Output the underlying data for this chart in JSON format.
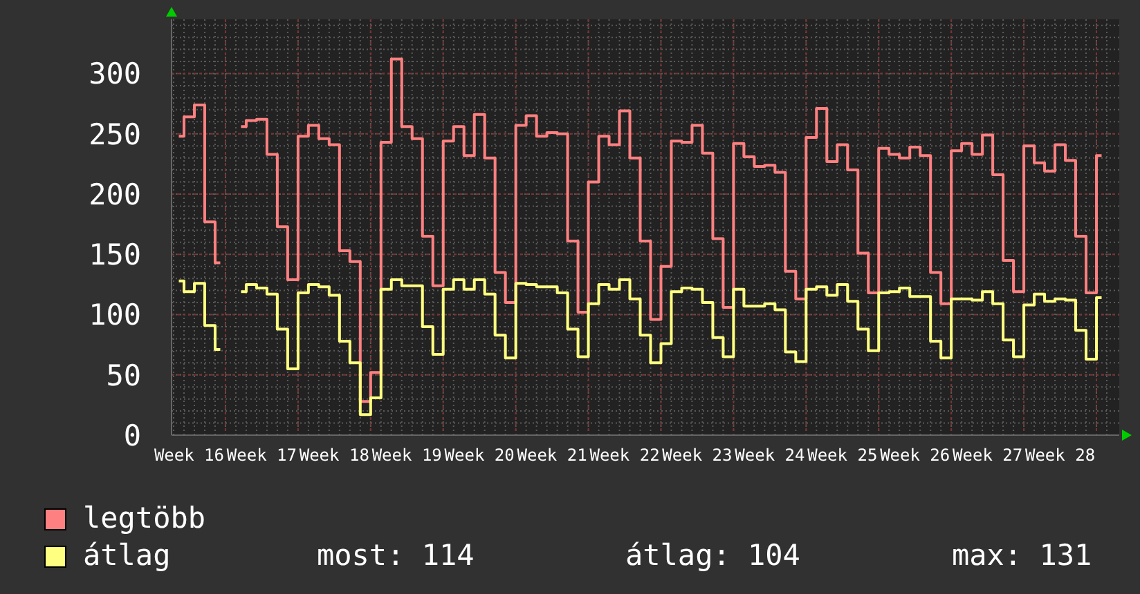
{
  "chart_data": {
    "type": "step",
    "categories": [
      null,
      "Week 16",
      null,
      null,
      null,
      null,
      null,
      null,
      "Week 17",
      null,
      null,
      null,
      null,
      null,
      null,
      "Week 18",
      null,
      null,
      null,
      null,
      null,
      null,
      "Week 19",
      null,
      null,
      null,
      null,
      null,
      null,
      "Week 20",
      null,
      null,
      null,
      null,
      null,
      null,
      "Week 21",
      null,
      null,
      null,
      null,
      null,
      null,
      "Week 22",
      null,
      null,
      null,
      null,
      null,
      null,
      "Week 23",
      null,
      null,
      null,
      null,
      null,
      null,
      "Week 24",
      null,
      null,
      null,
      null,
      null,
      null,
      "Week 25",
      null,
      null,
      null,
      null,
      null,
      null,
      "Week 26",
      null,
      null,
      null,
      null,
      null,
      null,
      "Week 27",
      null,
      null,
      null,
      null,
      null,
      null,
      "Week 28",
      null,
      null,
      null,
      null
    ],
    "series": [
      {
        "name": "legtöbb",
        "color": "#ff8080",
        "values": [
          248,
          264,
          274,
          177,
          143,
          null,
          256,
          261,
          262,
          233,
          173,
          129,
          248,
          257,
          246,
          241,
          153,
          144,
          28,
          52,
          243,
          312,
          256,
          246,
          165,
          124,
          244,
          256,
          232,
          266,
          230,
          135,
          110,
          257,
          265,
          248,
          251,
          250,
          161,
          102,
          210,
          248,
          241,
          269,
          230,
          161,
          96,
          140,
          244,
          243,
          257,
          234,
          163,
          106,
          242,
          231,
          223,
          224,
          218,
          136,
          113,
          247,
          271,
          227,
          241,
          220,
          151,
          118,
          238,
          233,
          230,
          239,
          232,
          135,
          109,
          236,
          242,
          233,
          249,
          216,
          145,
          119,
          240,
          226,
          219,
          241,
          228,
          165,
          118,
          232
        ]
      },
      {
        "name": "átlag",
        "color": "#ffff80",
        "values": [
          128,
          119,
          126,
          91,
          71,
          null,
          119,
          125,
          122,
          117,
          88,
          55,
          118,
          125,
          123,
          116,
          78,
          60,
          17,
          31,
          121,
          129,
          124,
          124,
          90,
          67,
          121,
          129,
          121,
          129,
          117,
          83,
          64,
          126,
          125,
          123,
          123,
          118,
          88,
          65,
          109,
          125,
          121,
          129,
          113,
          83,
          60,
          76,
          119,
          122,
          121,
          110,
          81,
          65,
          121,
          107,
          107,
          109,
          104,
          69,
          61,
          121,
          123,
          116,
          125,
          111,
          88,
          70,
          118,
          119,
          122,
          115,
          115,
          78,
          64,
          113,
          113,
          112,
          119,
          109,
          79,
          65,
          108,
          117,
          111,
          113,
          112,
          87,
          63,
          114
        ]
      }
    ],
    "ylim": [
      0,
      345
    ],
    "yticks": [
      0,
      50,
      100,
      150,
      200,
      250,
      300
    ],
    "grid": true,
    "legend": "bottom",
    "annotations": [
      "most: 114",
      "átlag: 104",
      "max: 131"
    ]
  }
}
